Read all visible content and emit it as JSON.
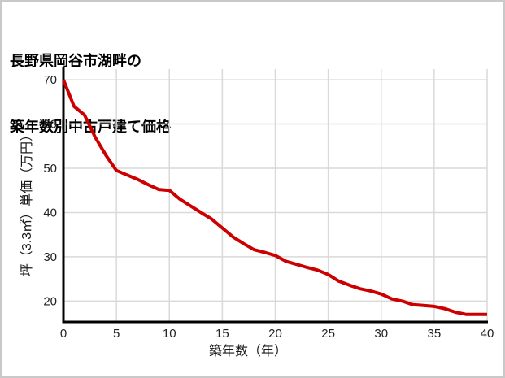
{
  "page": {
    "background_color": "#ffffff",
    "border_color": "#c9c9c9"
  },
  "title": {
    "line1": "長野県岡谷市湖畔の",
    "line2": "築年数別中古戸建て価格"
  },
  "chart_data": {
    "type": "line",
    "title": "長野県岡谷市湖畔の築年数別中古戸建て価格",
    "xlabel": "築年数（年）",
    "ylabel": "坪（3.3㎡）単価（万円）",
    "x": [
      0,
      1,
      2,
      3,
      4,
      5,
      6,
      7,
      8,
      9,
      10,
      11,
      12,
      13,
      14,
      15,
      16,
      17,
      18,
      19,
      20,
      21,
      22,
      23,
      24,
      25,
      26,
      27,
      28,
      29,
      30,
      31,
      32,
      33,
      34,
      35,
      36,
      37,
      38,
      39,
      40
    ],
    "values": [
      70,
      64,
      62,
      57,
      53,
      49.5,
      48.5,
      47.5,
      46.3,
      45.2,
      45,
      43,
      41.5,
      40,
      38.5,
      36.5,
      34.5,
      33,
      31.6,
      31,
      30.3,
      29,
      28.3,
      27.6,
      27,
      26,
      24.5,
      23.6,
      22.8,
      22.3,
      21.6,
      20.5,
      20,
      19.2,
      19,
      18.8,
      18.3,
      17.5,
      17,
      17,
      17
    ],
    "x_ticks": [
      0,
      5,
      10,
      15,
      20,
      25,
      30,
      35,
      40
    ],
    "y_ticks": [
      20,
      30,
      40,
      50,
      60,
      70
    ],
    "xlim": [
      0,
      40
    ],
    "ylim": [
      15.3,
      72.4
    ],
    "grid": true,
    "legend": false,
    "line_color": "#cc0000",
    "gridline_color": "#d9d9d9",
    "axis_color": "#000000"
  }
}
